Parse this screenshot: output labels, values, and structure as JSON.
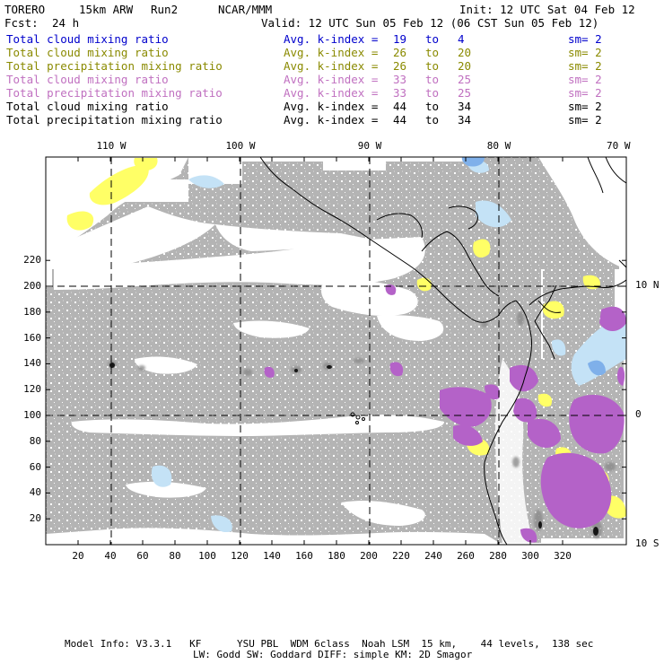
{
  "header": {
    "model": "TORERO",
    "resolution": "15km ARW",
    "run": "Run2",
    "org": "NCAR/MMM",
    "init": "Init: 12 UTC Sat 04 Feb 12",
    "fcst_label": "Fcst:",
    "fcst_value": "24 h",
    "valid": "Valid: 12 UTC Sun 05 Feb 12 (06 CST Sun 05 Feb 12)"
  },
  "legend": [
    {
      "field": "Total cloud mixing ratio",
      "index": "Avg. k-index =",
      "from": "19",
      "to_word": "to",
      "to": "4",
      "sm": "sm= 2",
      "color": "#0000cc"
    },
    {
      "field": "Total cloud mixing ratio",
      "index": "Avg. k-index =",
      "from": "26",
      "to_word": "to",
      "to": "20",
      "sm": "sm= 2",
      "color": "#8a8a00"
    },
    {
      "field": "Total precipitation mixing ratio",
      "index": "Avg. k-index =",
      "from": "26",
      "to_word": "to",
      "to": "20",
      "sm": "sm= 2",
      "color": "#8a8a00"
    },
    {
      "field": "Total cloud mixing ratio",
      "index": "Avg. k-index =",
      "from": "33",
      "to_word": "to",
      "to": "25",
      "sm": "sm= 2",
      "color": "#c070c0"
    },
    {
      "field": "Total precipitation mixing ratio",
      "index": "Avg. k-index =",
      "from": "33",
      "to_word": "to",
      "to": "25",
      "sm": "sm= 2",
      "color": "#c070c0"
    },
    {
      "field": "Total cloud mixing ratio",
      "index": "Avg. k-index =",
      "from": "44",
      "to_word": "to",
      "to": "34",
      "sm": "sm= 2",
      "color": "#000000"
    },
    {
      "field": "Total precipitation mixing ratio",
      "index": "Avg. k-index =",
      "from": "44",
      "to_word": "to",
      "to": "34",
      "sm": "sm= 2",
      "color": "#000000"
    }
  ],
  "map": {
    "lon_labels": [
      "110 W",
      "100 W",
      "90 W",
      "80 W",
      "70 W"
    ],
    "lat_labels": [
      "10 N",
      "0",
      "10 S"
    ],
    "y_ticks": [
      "220",
      "200",
      "180",
      "160",
      "140",
      "120",
      "100",
      "80",
      "60",
      "40",
      "20"
    ],
    "x_ticks": [
      "20",
      "40",
      "60",
      "80",
      "100",
      "120",
      "140",
      "160",
      "180",
      "200",
      "220",
      "240",
      "260",
      "280",
      "300",
      "320"
    ],
    "colors": {
      "gray_cloud": "#b4b4b4",
      "yellow": "#ffff66",
      "light_blue": "#c4e2f6",
      "blue": "#7fb0ea",
      "purple": "#b462c8",
      "black": "#000000"
    }
  },
  "footer": {
    "line1": "Model Info: V3.3.1   KF      YSU PBL  WDM 6class  Noah LSM  15 km,    44 levels,  138 sec",
    "line2": "LW: Godd SW: Goddard DIFF: simple KM: 2D Smagor"
  }
}
